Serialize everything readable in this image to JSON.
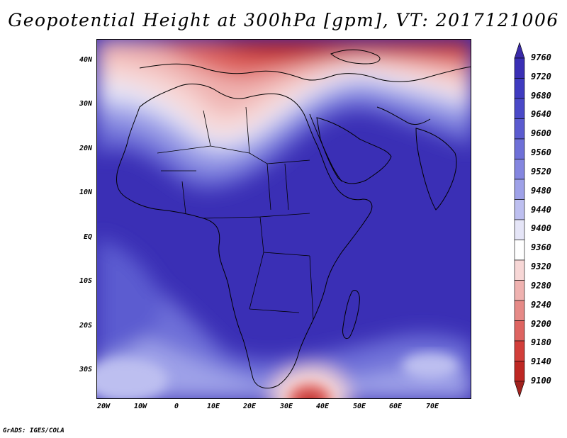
{
  "title": "Geopotential Height at 300hPa [gpm], VT: 2017121006",
  "credit": "GrADS: IGES/COLA",
  "map": {
    "variable": "Geopotential Height",
    "level": "300hPa",
    "units": "gpm",
    "valid_time": "2017121006",
    "lat_labels": [
      "40N",
      "30N",
      "20N",
      "10N",
      "EQ",
      "10S",
      "20S",
      "30S"
    ],
    "lon_labels": [
      "20W",
      "10W",
      "0",
      "10E",
      "20E",
      "30E",
      "40E",
      "50E",
      "60E",
      "70E"
    ]
  },
  "colorbar": {
    "levels": [
      9760,
      9720,
      9680,
      9640,
      9600,
      9560,
      9520,
      9480,
      9440,
      9400,
      9360,
      9320,
      9280,
      9240,
      9200,
      9180,
      9140,
      9100
    ],
    "level_labels": [
      "9760",
      "9720",
      "9680",
      "9640",
      "9600",
      "9560",
      "9520",
      "9480",
      "9440",
      "9400",
      "9360",
      "9320",
      "9280",
      "9240",
      "9200",
      "9180",
      "9140",
      "9100"
    ],
    "colors": [
      "#3A2AA8",
      "#3A2FB5",
      "#3F3BC0",
      "#4A49C8",
      "#5B5BD0",
      "#6E70D8",
      "#8486E0",
      "#9EA1E8",
      "#BDBFF0",
      "#E5E5F7",
      "#FFFFFF",
      "#F7D7D6",
      "#EFB2B0",
      "#E68A87",
      "#DE6461",
      "#D23E3A",
      "#BE2723",
      "#A0221E"
    ]
  }
}
